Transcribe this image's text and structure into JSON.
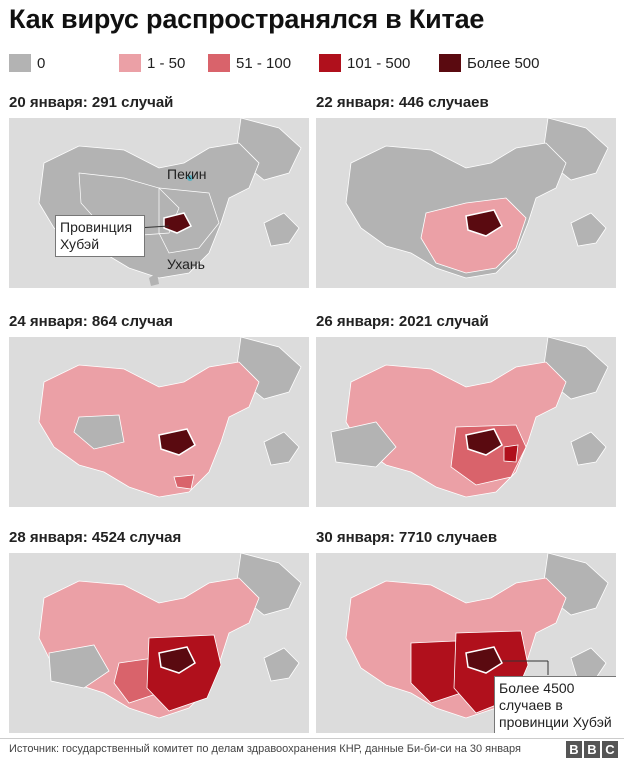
{
  "title": "Как вирус распространялся в Китае",
  "legend": [
    {
      "label": "0",
      "color": "#b3b3b3"
    },
    {
      "label": "1 - 50",
      "color": "#eba0a6"
    },
    {
      "label": "51 - 100",
      "color": "#d9636b"
    },
    {
      "label": "101 - 500",
      "color": "#b0101c"
    },
    {
      "label": "Более 500",
      "color": "#5a0a10"
    }
  ],
  "panels": [
    {
      "title": "20 января: 291 случай"
    },
    {
      "title": "22 января: 446 случаев"
    },
    {
      "title": "24 января: 864 случая"
    },
    {
      "title": "26 января: 2021 случай"
    },
    {
      "title": "28 января: 4524 случая"
    },
    {
      "title": "30 января: 7710 случаев"
    }
  ],
  "labels": {
    "beijing": "Пекин",
    "wuhan": "Ухань",
    "hubei_callout_1": "Провинция",
    "hubei_callout_2": "Хубэй",
    "final_callout_1": "Более 4500",
    "final_callout_2": "случаев в",
    "final_callout_3": "провинции Хубэй"
  },
  "footer": {
    "source": "Источник: государственный комитет по делам здравоохранения КНР, данные Би-би-си на 30 января",
    "logo": [
      "B",
      "B",
      "C"
    ]
  }
}
